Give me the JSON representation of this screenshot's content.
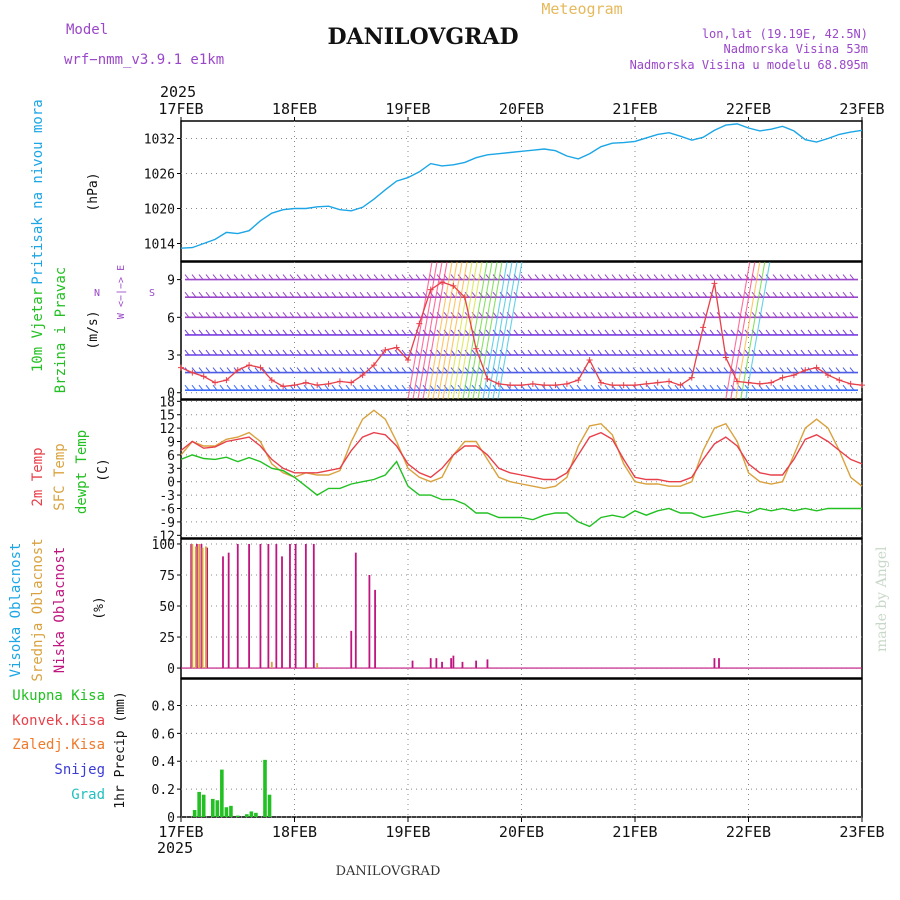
{
  "header": {
    "model_label": "Model",
    "model_name": "wrf−nmm_v3.9.1  e1km",
    "title": "DANILOVGRAD",
    "meteogram_label": "Meteogram",
    "lonlat": "lon,lat (19.19E, 42.5N)",
    "elevation": "Nadmorska Visina 53m",
    "elevation_model": "Nadmorska Visina u modelu 68.895m",
    "year_top": "2025",
    "year_bottom": "2025",
    "footer": "DANILOVGRAD",
    "credit": "made by Angel"
  },
  "colors": {
    "pressure": "#1ca6e6",
    "title_purple": "#9a47c9",
    "meteogram_orange": "#e6b95c",
    "temp2m": "#e8404a",
    "sfctemp": "#d9a23e",
    "dewpt": "#22c022",
    "high_cloud": "#1ca6e6",
    "mid_cloud": "#d9a23e",
    "low_cloud": "#c0157f",
    "total_precip": "#22c022",
    "conv_precip": "#e8404a",
    "frozen_precip": "#ef7a2a",
    "snow": "#3c3cd8",
    "graupel": "#22c0c0",
    "wind_black": "#000000"
  },
  "chart_data": [
    {
      "type": "line",
      "panel": "pressure",
      "ylabel_series": "Pritisak na nivou mora",
      "ylabel_unit": "(hPa)",
      "xticks": [
        "17FEB",
        "18FEB",
        "19FEB",
        "20FEB",
        "21FEB",
        "22FEB",
        "23FEB"
      ],
      "ylim": [
        1011,
        1035
      ],
      "yticks": [
        1014,
        1020,
        1026,
        1032
      ],
      "grid": true,
      "x": [
        0,
        0.1,
        0.2,
        0.3,
        0.4,
        0.5,
        0.6,
        0.7,
        0.8,
        0.9,
        1.0,
        1.1,
        1.2,
        1.3,
        1.4,
        1.5,
        1.6,
        1.7,
        1.8,
        1.9,
        2.0,
        2.1,
        2.2,
        2.3,
        2.4,
        2.5,
        2.6,
        2.7,
        2.8,
        2.9,
        3.0,
        3.1,
        3.2,
        3.3,
        3.4,
        3.5,
        3.6,
        3.7,
        3.8,
        3.9,
        4.0,
        4.1,
        4.2,
        4.3,
        4.4,
        4.5,
        4.6,
        4.7,
        4.8,
        4.9,
        5.0,
        5.1,
        5.2,
        5.3,
        5.4,
        5.5,
        5.6,
        5.7,
        5.8,
        5.9,
        6.0
      ],
      "values": [
        1013.2,
        1013.3,
        1014.0,
        1014.7,
        1015.9,
        1015.7,
        1016.2,
        1017.9,
        1019.2,
        1019.8,
        1020.0,
        1020.0,
        1020.3,
        1020.4,
        1019.8,
        1019.6,
        1020.2,
        1021.6,
        1023.2,
        1024.7,
        1025.3,
        1026.3,
        1027.7,
        1027.3,
        1027.5,
        1027.9,
        1028.7,
        1029.2,
        1029.4,
        1029.6,
        1029.8,
        1030.0,
        1030.2,
        1029.9,
        1029.0,
        1028.5,
        1029.4,
        1030.6,
        1031.2,
        1031.3,
        1031.5,
        1032.1,
        1032.7,
        1033.0,
        1032.4,
        1031.7,
        1032.2,
        1033.4,
        1034.3,
        1034.5,
        1033.8,
        1033.3,
        1033.6,
        1034.1,
        1033.3,
        1031.8,
        1031.4,
        1032.0,
        1032.7,
        1033.1,
        1033.4
      ],
      "series_color": "#1ca6e6"
    },
    {
      "type": "line",
      "panel": "wind",
      "ylabel_series": [
        "10m Vjetar",
        "Brzina i Pravac"
      ],
      "ylabel_unit": "(m/s)",
      "compass": "W <−|−> E",
      "compass_ns": [
        "N",
        "S"
      ],
      "ylim": [
        0,
        10
      ],
      "yticks": [
        0,
        3,
        6,
        9
      ],
      "grid": true,
      "x": [
        0,
        0.1,
        0.2,
        0.3,
        0.4,
        0.5,
        0.6,
        0.7,
        0.8,
        0.9,
        1.0,
        1.1,
        1.2,
        1.3,
        1.4,
        1.5,
        1.6,
        1.7,
        1.8,
        1.9,
        2.0,
        2.1,
        2.2,
        2.3,
        2.4,
        2.5,
        2.6,
        2.7,
        2.8,
        2.9,
        3.0,
        3.1,
        3.2,
        3.3,
        3.4,
        3.5,
        3.6,
        3.7,
        3.8,
        3.9,
        4.0,
        4.1,
        4.2,
        4.3,
        4.4,
        4.5,
        4.6,
        4.7,
        4.8,
        4.9,
        5.0,
        5.1,
        5.2,
        5.3,
        5.4,
        5.5,
        5.6,
        5.7,
        5.8,
        5.9,
        6.0
      ],
      "speed": [
        2.0,
        1.6,
        1.3,
        0.8,
        1.0,
        1.8,
        2.2,
        2.0,
        1.0,
        0.5,
        0.6,
        0.8,
        0.6,
        0.7,
        0.9,
        0.8,
        1.4,
        2.2,
        3.4,
        3.6,
        2.6,
        5.5,
        8.2,
        8.8,
        8.5,
        7.6,
        3.5,
        1.1,
        0.7,
        0.6,
        0.6,
        0.7,
        0.6,
        0.6,
        0.7,
        1.0,
        2.6,
        0.8,
        0.6,
        0.6,
        0.6,
        0.7,
        0.8,
        0.9,
        0.6,
        1.2,
        5.2,
        8.7,
        2.8,
        0.9,
        0.8,
        0.7,
        0.8,
        1.2,
        1.4,
        1.8,
        2.0,
        1.4,
        1.0,
        0.7,
        0.6
      ],
      "series_color": "#e8404a"
    },
    {
      "type": "line",
      "panel": "temperature",
      "ylabel_series": [
        "2m Temp",
        "SFC Temp",
        "dewpt Temp"
      ],
      "ylabel_unit": "(C)",
      "ylim": [
        -12,
        18
      ],
      "yticks": [
        -12,
        -9,
        -6,
        -3,
        0,
        3,
        6,
        9,
        12,
        15,
        18
      ],
      "grid": true,
      "x": [
        0,
        0.1,
        0.2,
        0.3,
        0.4,
        0.5,
        0.6,
        0.7,
        0.8,
        0.9,
        1.0,
        1.1,
        1.2,
        1.3,
        1.4,
        1.5,
        1.6,
        1.7,
        1.8,
        1.9,
        2.0,
        2.1,
        2.2,
        2.3,
        2.4,
        2.5,
        2.6,
        2.7,
        2.8,
        2.9,
        3.0,
        3.1,
        3.2,
        3.3,
        3.4,
        3.5,
        3.6,
        3.7,
        3.8,
        3.9,
        4.0,
        4.1,
        4.2,
        4.3,
        4.4,
        4.5,
        4.6,
        4.7,
        4.8,
        4.9,
        5.0,
        5.1,
        5.2,
        5.3,
        5.4,
        5.5,
        5.6,
        5.7,
        5.8,
        5.9,
        6.0
      ],
      "series": [
        {
          "name": "2m Temp",
          "values": [
            7,
            9,
            7.5,
            7.8,
            9,
            9.5,
            10,
            8,
            5,
            3,
            2,
            2,
            2,
            2.5,
            3,
            7,
            10,
            11,
            10.5,
            8,
            4,
            2,
            1,
            3,
            6,
            8,
            8,
            6,
            3,
            2,
            1.5,
            1,
            0.5,
            0.5,
            2,
            6,
            10,
            11,
            9.5,
            5,
            1,
            0.5,
            0.5,
            0,
            0,
            1,
            5,
            8.5,
            10,
            8,
            4,
            2,
            1.5,
            1.5,
            5,
            9.5,
            10.5,
            9,
            7,
            5,
            4
          ]
        },
        {
          "name": "SFC Temp",
          "values": [
            6,
            9,
            8,
            8,
            9.5,
            10,
            11,
            9,
            4,
            2,
            1,
            2,
            1.5,
            1.5,
            2.5,
            9,
            14,
            16,
            14,
            9,
            3,
            1,
            0,
            1,
            6,
            9,
            9,
            5,
            1,
            0,
            -0.5,
            -1,
            -1.5,
            -1,
            1,
            8,
            12.5,
            13,
            10.5,
            4,
            0,
            -0.5,
            -0.5,
            -1,
            -1,
            0,
            7,
            12,
            13,
            9,
            2,
            0,
            -0.5,
            0,
            6,
            12,
            14,
            12,
            7,
            1,
            -1
          ]
        },
        {
          "name": "dewpt Temp",
          "values": [
            5,
            6,
            5.2,
            5,
            5.5,
            4.5,
            5.4,
            4.5,
            3,
            2.5,
            1,
            -1,
            -3,
            -1.5,
            -1.5,
            -0.5,
            0,
            0.5,
            1.5,
            4.5,
            -1,
            -3,
            -3,
            -4,
            -4,
            -5,
            -7,
            -7,
            -8,
            -8,
            -8,
            -8.5,
            -7.5,
            -7,
            -7,
            -9,
            -10,
            -8,
            -7.5,
            -8,
            -6.5,
            -7.5,
            -6.5,
            -6,
            -7,
            -7,
            -8,
            -7.5,
            -7,
            -6.5,
            -7,
            -6,
            -6.5,
            -6,
            -6.5,
            -6,
            -6.5,
            -6,
            -6,
            -6,
            -6
          ]
        }
      ]
    },
    {
      "type": "bar",
      "panel": "cloud",
      "ylabel_series": [
        "Visoka Oblacnost",
        "Srednja Oblacnost",
        "Niska Oblacnost"
      ],
      "ylabel_unit": "(%)",
      "ylim": [
        0,
        100
      ],
      "yticks": [
        0,
        25,
        50,
        75,
        100
      ],
      "grid": true,
      "series": [
        {
          "name": "Niska Oblacnost",
          "x": [
            0.09,
            0.14,
            0.18,
            0.23,
            0.37,
            0.42,
            0.5,
            0.6,
            0.7,
            0.77,
            0.84,
            0.89,
            0.96,
            1.01,
            1.1,
            1.17,
            1.5,
            1.54,
            1.66,
            1.71,
            2.04,
            2.2,
            2.25,
            2.3,
            2.38,
            2.4,
            2.48,
            2.6,
            2.7,
            4.7,
            4.74
          ],
          "values": [
            100,
            100,
            100,
            97,
            90,
            93,
            100,
            100,
            100,
            100,
            100,
            90,
            100,
            100,
            100,
            100,
            30,
            93,
            75,
            63,
            6,
            8,
            8,
            5,
            8,
            10,
            5,
            6,
            7,
            8,
            8
          ]
        },
        {
          "name": "Srednja Oblacnost",
          "x": [
            0.1,
            0.13,
            0.16,
            0.19,
            0.22,
            0.8,
            1.2
          ],
          "values": [
            100,
            98,
            100,
            97,
            98,
            5,
            4
          ]
        }
      ]
    },
    {
      "type": "bar",
      "panel": "precip",
      "ylabel_series": [
        "Ukupna Kisa",
        "Konvek.Kisa",
        "Zaledj.Kisa",
        "Snijeg",
        "Grad"
      ],
      "ylabel_unit": "1hr Precip (mm)",
      "ylim": [
        0,
        1
      ],
      "yticks": [
        0,
        0.2,
        0.4,
        0.6,
        0.8
      ],
      "grid": true,
      "xticks": [
        "17FEB",
        "18FEB",
        "19FEB",
        "20FEB",
        "21FEB",
        "22FEB",
        "23FEB"
      ],
      "series": [
        {
          "name": "Ukupna Kisa",
          "x": [
            0.12,
            0.16,
            0.2,
            0.28,
            0.32,
            0.36,
            0.4,
            0.44,
            0.5,
            0.58,
            0.62,
            0.66,
            0.74,
            0.78
          ],
          "values": [
            0.05,
            0.18,
            0.16,
            0.13,
            0.12,
            0.34,
            0.07,
            0.08,
            0.01,
            0.02,
            0.04,
            0.03,
            0.41,
            0.16
          ]
        }
      ]
    }
  ]
}
